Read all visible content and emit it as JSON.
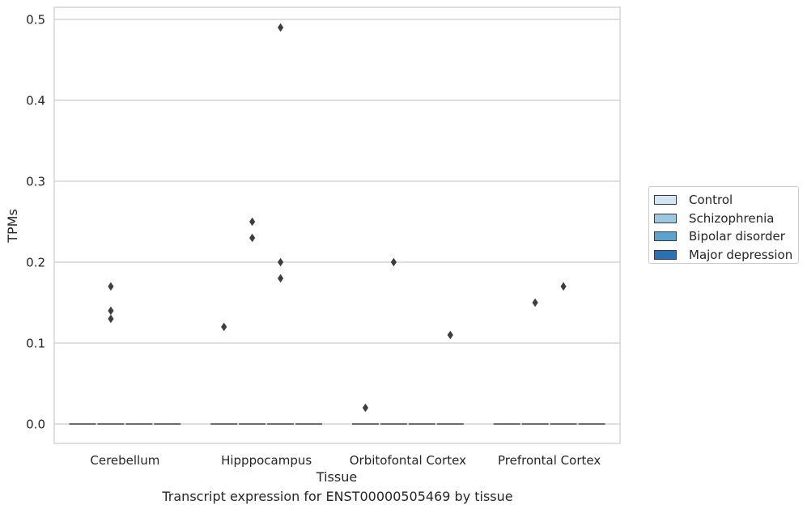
{
  "chart_data": {
    "type": "box",
    "xlabel": "Tissue",
    "ylabel": "TPMs",
    "caption": "Transcript expression for ENST00000505469 by tissue",
    "categories": [
      "Cerebellum",
      "Hipppocampus",
      "Orbitofontal Cortex",
      "Prefrontal Cortex"
    ],
    "ylim": [
      -0.024,
      0.515
    ],
    "yticks": [
      0.0,
      0.1,
      0.2,
      0.3,
      0.4,
      0.5
    ],
    "ytick_labels": [
      "0.0",
      "0.1",
      "0.2",
      "0.3",
      "0.4",
      "0.5"
    ],
    "grid": true,
    "legend_position": "right",
    "series": [
      {
        "name": "Control",
        "color": "#d3e4f3",
        "median": [
          0,
          0,
          0,
          0
        ],
        "outliers": [
          [],
          [
            0.12
          ],
          [
            0.02
          ],
          []
        ]
      },
      {
        "name": "Schizophrenia",
        "color": "#9ac8e0",
        "median": [
          0,
          0,
          0,
          0
        ],
        "outliers": [
          [
            0.13,
            0.14,
            0.17
          ],
          [
            0.23,
            0.25
          ],
          [
            0.2
          ],
          [
            0.15
          ]
        ]
      },
      {
        "name": "Bipolar disorder",
        "color": "#5ba3cf",
        "median": [
          0,
          0,
          0,
          0
        ],
        "outliers": [
          [],
          [
            0.18,
            0.2,
            0.49
          ],
          [],
          [
            0.17
          ]
        ]
      },
      {
        "name": "Major depression",
        "color": "#2a71b1",
        "median": [
          0,
          0,
          0,
          0
        ],
        "outliers": [
          [],
          [],
          [
            0.11
          ],
          []
        ]
      }
    ]
  }
}
